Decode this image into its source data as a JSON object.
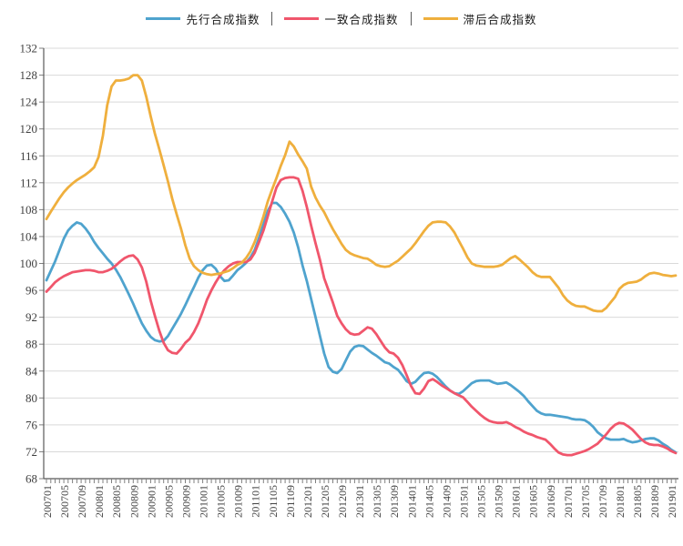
{
  "chart_data": {
    "type": "line",
    "title": "",
    "x_frequency": "monthly",
    "x_start": "200701",
    "x_end": "201902",
    "ylim": [
      68,
      132
    ],
    "grid": true,
    "legend_position": "top",
    "y_ticks": [
      68,
      72,
      76,
      80,
      84,
      88,
      92,
      96,
      100,
      104,
      108,
      112,
      116,
      120,
      124,
      128,
      132
    ],
    "x_tick_labels": [
      "200701",
      "200705",
      "200709",
      "200801",
      "200805",
      "200809",
      "200901",
      "200905",
      "200909",
      "201001",
      "201005",
      "201009",
      "201101",
      "201105",
      "201109",
      "201201",
      "201205",
      "201209",
      "201301",
      "201305",
      "201309",
      "201401",
      "201405",
      "201409",
      "201501",
      "201505",
      "201509",
      "201601",
      "201605",
      "201609",
      "201701",
      "201705",
      "201709",
      "201801",
      "201805",
      "201809",
      "201901"
    ],
    "colors": {
      "grid": "#d9d9d9",
      "axis": "#595959",
      "tick": "#808080",
      "label": "#404040"
    },
    "series": [
      {
        "name": "先行合成指数",
        "color": "#4fa3ce",
        "values": [
          97.5,
          98.9,
          100.3,
          102.0,
          103.7,
          104.9,
          105.6,
          106.1,
          105.9,
          105.2,
          104.3,
          103.2,
          102.3,
          101.5,
          100.7,
          100.0,
          99.1,
          98.0,
          96.7,
          95.4,
          94.0,
          92.5,
          91.1,
          90.0,
          89.1,
          88.6,
          88.4,
          88.5,
          89.2,
          90.3,
          91.4,
          92.5,
          93.8,
          95.2,
          96.5,
          97.9,
          99.0,
          99.7,
          99.8,
          99.2,
          98.1,
          97.4,
          97.5,
          98.2,
          99.0,
          99.5,
          100.1,
          100.9,
          102.0,
          103.8,
          105.8,
          107.8,
          109.0,
          109.0,
          108.4,
          107.4,
          106.2,
          104.6,
          102.4,
          99.7,
          97.4,
          94.7,
          92.0,
          89.3,
          86.6,
          84.6,
          83.9,
          83.7,
          84.3,
          85.6,
          86.9,
          87.6,
          87.8,
          87.7,
          87.2,
          86.7,
          86.3,
          85.8,
          85.3,
          85.1,
          84.6,
          84.2,
          83.4,
          82.5,
          82.1,
          82.4,
          83.1,
          83.7,
          83.8,
          83.6,
          83.1,
          82.4,
          81.7,
          81.1,
          80.7,
          80.6,
          81.0,
          81.6,
          82.2,
          82.5,
          82.6,
          82.6,
          82.6,
          82.3,
          82.1,
          82.2,
          82.3,
          81.9,
          81.4,
          80.9,
          80.3,
          79.5,
          78.8,
          78.1,
          77.7,
          77.5,
          77.5,
          77.4,
          77.3,
          77.2,
          77.1,
          76.9,
          76.8,
          76.8,
          76.7,
          76.3,
          75.7,
          74.9,
          74.4,
          74.0,
          73.8,
          73.8,
          73.8,
          73.9,
          73.6,
          73.4,
          73.5,
          73.7,
          73.9,
          74.0,
          74.0,
          73.7,
          73.2,
          72.8,
          72.3,
          71.9
        ]
      },
      {
        "name": "一致合成指数",
        "color": "#f0566c",
        "values": [
          95.8,
          96.5,
          97.2,
          97.7,
          98.1,
          98.4,
          98.7,
          98.8,
          98.9,
          99.0,
          99.0,
          98.9,
          98.7,
          98.7,
          98.9,
          99.2,
          99.7,
          100.3,
          100.8,
          101.1,
          101.2,
          100.6,
          99.4,
          97.3,
          94.5,
          92.2,
          90.0,
          88.2,
          87.1,
          86.7,
          86.6,
          87.3,
          88.2,
          88.8,
          89.8,
          91.1,
          92.8,
          94.6,
          96.0,
          97.2,
          98.2,
          99.0,
          99.6,
          100.0,
          100.2,
          100.2,
          100.2,
          100.6,
          101.6,
          103.2,
          104.9,
          107.0,
          109.2,
          111.3,
          112.4,
          112.7,
          112.8,
          112.8,
          112.6,
          110.8,
          108.4,
          105.6,
          103.0,
          100.6,
          97.8,
          96.0,
          94.2,
          92.2,
          91.1,
          90.2,
          89.6,
          89.4,
          89.5,
          90.0,
          90.5,
          90.3,
          89.5,
          88.5,
          87.5,
          86.8,
          86.6,
          86.0,
          84.9,
          83.4,
          81.8,
          80.7,
          80.6,
          81.4,
          82.5,
          82.8,
          82.4,
          81.9,
          81.5,
          81.1,
          80.7,
          80.4,
          80.1,
          79.4,
          78.7,
          78.1,
          77.5,
          77.0,
          76.6,
          76.4,
          76.3,
          76.3,
          76.4,
          76.1,
          75.7,
          75.4,
          75.0,
          74.7,
          74.5,
          74.2,
          74.0,
          73.8,
          73.2,
          72.5,
          71.9,
          71.6,
          71.5,
          71.5,
          71.7,
          71.9,
          72.1,
          72.4,
          72.8,
          73.2,
          73.9,
          74.6,
          75.4,
          76.0,
          76.3,
          76.2,
          75.8,
          75.3,
          74.6,
          73.9,
          73.4,
          73.1,
          73.0,
          73.0,
          72.8,
          72.5,
          72.1,
          71.8
        ]
      },
      {
        "name": "滞后合成指数",
        "color": "#efaf3d",
        "values": [
          106.6,
          107.7,
          108.7,
          109.7,
          110.6,
          111.3,
          111.9,
          112.4,
          112.8,
          113.2,
          113.7,
          114.3,
          115.8,
          119.0,
          123.5,
          126.3,
          127.2,
          127.2,
          127.3,
          127.5,
          128.0,
          128.0,
          127.2,
          124.8,
          121.9,
          119.3,
          117.0,
          114.6,
          112.2,
          109.6,
          107.3,
          105.2,
          102.7,
          100.7,
          99.6,
          99.0,
          98.6,
          98.4,
          98.3,
          98.4,
          98.5,
          98.7,
          98.9,
          99.3,
          99.8,
          100.1,
          100.8,
          101.8,
          103.2,
          105.0,
          107.0,
          109.2,
          111.0,
          112.7,
          114.5,
          116.1,
          118.1,
          117.4,
          116.2,
          115.2,
          114.1,
          111.4,
          109.8,
          108.6,
          107.6,
          106.3,
          105.1,
          104.0,
          102.9,
          102.0,
          101.5,
          101.2,
          101.0,
          100.8,
          100.7,
          100.3,
          99.8,
          99.6,
          99.5,
          99.6,
          100.0,
          100.4,
          101.0,
          101.6,
          102.2,
          103.0,
          103.9,
          104.8,
          105.6,
          106.1,
          106.2,
          106.2,
          106.1,
          105.5,
          104.6,
          103.4,
          102.2,
          100.9,
          100.0,
          99.7,
          99.6,
          99.5,
          99.5,
          99.5,
          99.6,
          99.8,
          100.3,
          100.8,
          101.1,
          100.6,
          100.0,
          99.4,
          98.7,
          98.2,
          98.0,
          98.0,
          98.0,
          97.2,
          96.4,
          95.3,
          94.5,
          94.0,
          93.7,
          93.6,
          93.6,
          93.3,
          93.0,
          92.9,
          92.9,
          93.4,
          94.2,
          95.0,
          96.2,
          96.8,
          97.1,
          97.2,
          97.3,
          97.6,
          98.1,
          98.5,
          98.6,
          98.5,
          98.3,
          98.2,
          98.1,
          98.2
        ]
      }
    ]
  }
}
